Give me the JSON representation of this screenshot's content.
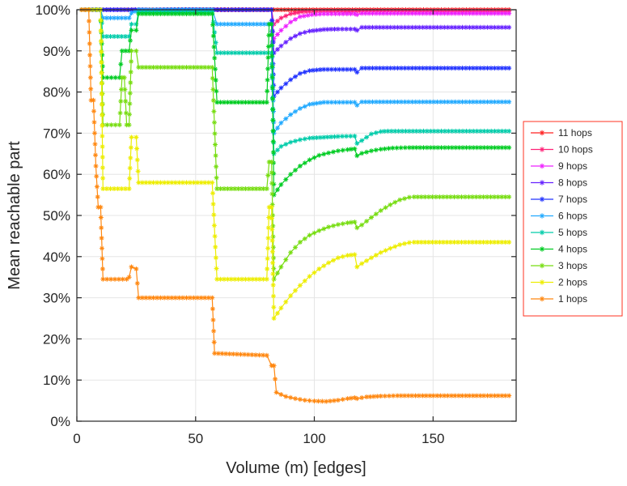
{
  "chart_data": {
    "type": "line",
    "title": "",
    "xlabel": "Volume (m) [edges]",
    "ylabel": "Mean reachable part",
    "xlim": [
      0,
      185
    ],
    "ylim": [
      0,
      100
    ],
    "x_ticks": [
      0,
      50,
      100,
      150
    ],
    "y_ticks": [
      0,
      10,
      20,
      30,
      40,
      50,
      60,
      70,
      80,
      90,
      100
    ],
    "y_tick_suffix": "%",
    "grid": true,
    "marker": "asterisk",
    "legend_position": "right-outside",
    "series": [
      {
        "name": "11 hops",
        "color": "#ff2222",
        "points": [
          [
            2,
            100
          ],
          [
            182,
            100
          ]
        ]
      },
      {
        "name": "10 hops",
        "color": "#ff2277",
        "points": [
          [
            2,
            100
          ],
          [
            82,
            100
          ],
          [
            83,
            96.5
          ],
          [
            86,
            98
          ],
          [
            90,
            99
          ],
          [
            95,
            99.5
          ],
          [
            101,
            99.7
          ],
          [
            182,
            99.7
          ]
        ]
      },
      {
        "name": "9 hops",
        "color": "#ee22ff",
        "points": [
          [
            2,
            100
          ],
          [
            82,
            100
          ],
          [
            83,
            93
          ],
          [
            86,
            95
          ],
          [
            90,
            97
          ],
          [
            94,
            98.3
          ],
          [
            99,
            98.8
          ],
          [
            104,
            99
          ],
          [
            117,
            99
          ],
          [
            118,
            98.8
          ],
          [
            120,
            99.1
          ],
          [
            182,
            99.1
          ]
        ]
      },
      {
        "name": "8 hops",
        "color": "#6622ff",
        "points": [
          [
            2,
            100
          ],
          [
            82,
            100
          ],
          [
            83,
            89.5
          ],
          [
            86,
            91.2
          ],
          [
            90,
            93
          ],
          [
            94,
            94.2
          ],
          [
            98,
            94.8
          ],
          [
            104,
            95.2
          ],
          [
            110,
            95.3
          ],
          [
            117,
            95.3
          ],
          [
            118,
            95
          ],
          [
            120,
            95.7
          ],
          [
            182,
            95.7
          ]
        ]
      },
      {
        "name": "7 hops",
        "color": "#2233ff",
        "points": [
          [
            2,
            100
          ],
          [
            82,
            100
          ],
          [
            83,
            79
          ],
          [
            86,
            81
          ],
          [
            90,
            83
          ],
          [
            94,
            84.5
          ],
          [
            98,
            85.2
          ],
          [
            104,
            85.5
          ],
          [
            117,
            85.5
          ],
          [
            118,
            84.8
          ],
          [
            120,
            85.8
          ],
          [
            182,
            85.8
          ]
        ]
      },
      {
        "name": "6 hops",
        "color": "#22aaff",
        "points": [
          [
            2,
            100
          ],
          [
            10,
            100
          ],
          [
            11,
            98
          ],
          [
            22,
            98
          ],
          [
            23,
            99.2
          ],
          [
            26,
            100
          ],
          [
            57,
            100
          ],
          [
            59,
            96.5
          ],
          [
            82,
            96.5
          ],
          [
            83,
            70
          ],
          [
            86,
            72.5
          ],
          [
            90,
            74.5
          ],
          [
            94,
            76
          ],
          [
            98,
            77
          ],
          [
            104,
            77.5
          ],
          [
            117,
            77.5
          ],
          [
            118,
            76.8
          ],
          [
            120,
            77.6
          ],
          [
            182,
            77.6
          ]
        ]
      },
      {
        "name": "5 hops",
        "color": "#00ccaa",
        "points": [
          [
            2,
            100
          ],
          [
            10,
            100
          ],
          [
            11,
            93.5
          ],
          [
            22,
            93.5
          ],
          [
            23,
            96.5
          ],
          [
            25,
            96.5
          ],
          [
            26,
            99.5
          ],
          [
            57,
            99.5
          ],
          [
            59,
            89.5
          ],
          [
            82,
            89.5
          ],
          [
            83,
            65
          ],
          [
            86,
            66.8
          ],
          [
            90,
            67.8
          ],
          [
            94,
            68.4
          ],
          [
            98,
            68.8
          ],
          [
            104,
            69
          ],
          [
            110,
            69.2
          ],
          [
            117,
            69.3
          ],
          [
            118,
            67.5
          ],
          [
            120,
            68.2
          ],
          [
            124,
            69.8
          ],
          [
            128,
            70.4
          ],
          [
            131,
            70.5
          ],
          [
            182,
            70.5
          ]
        ]
      },
      {
        "name": "4 hops",
        "color": "#00cc22",
        "points": [
          [
            2,
            100
          ],
          [
            10,
            100
          ],
          [
            11,
            83.5
          ],
          [
            18,
            83.5
          ],
          [
            19,
            90
          ],
          [
            22,
            90
          ],
          [
            23,
            95
          ],
          [
            25,
            95
          ],
          [
            26,
            99
          ],
          [
            57,
            99
          ],
          [
            59,
            77.5
          ],
          [
            80,
            77.5
          ],
          [
            81,
            96.5
          ],
          [
            82,
            96.5
          ],
          [
            83,
            55
          ],
          [
            86,
            57.5
          ],
          [
            90,
            60
          ],
          [
            94,
            62
          ],
          [
            98,
            63.5
          ],
          [
            102,
            64.6
          ],
          [
            106,
            65.2
          ],
          [
            110,
            65.7
          ],
          [
            114,
            66
          ],
          [
            117,
            66.2
          ],
          [
            118,
            64.5
          ],
          [
            120,
            65.1
          ],
          [
            124,
            65.7
          ],
          [
            128,
            66.1
          ],
          [
            133,
            66.4
          ],
          [
            140,
            66.5
          ],
          [
            182,
            66.5
          ]
        ]
      },
      {
        "name": "3 hops",
        "color": "#77dd11",
        "points": [
          [
            2,
            100
          ],
          [
            10,
            100
          ],
          [
            11,
            72
          ],
          [
            18,
            72
          ],
          [
            19,
            83.5
          ],
          [
            20,
            83.5
          ],
          [
            21,
            72
          ],
          [
            22,
            72
          ],
          [
            23,
            90
          ],
          [
            25,
            90
          ],
          [
            26,
            86
          ],
          [
            57,
            86
          ],
          [
            59,
            56.5
          ],
          [
            80,
            56.5
          ],
          [
            81,
            63
          ],
          [
            82,
            63
          ],
          [
            83,
            34.5
          ],
          [
            86,
            37.5
          ],
          [
            90,
            41
          ],
          [
            94,
            43.5
          ],
          [
            98,
            45.2
          ],
          [
            102,
            46.3
          ],
          [
            106,
            47.2
          ],
          [
            110,
            47.8
          ],
          [
            114,
            48.2
          ],
          [
            117,
            48.4
          ],
          [
            118,
            47
          ],
          [
            120,
            47.7
          ],
          [
            124,
            49.5
          ],
          [
            128,
            51.2
          ],
          [
            132,
            52.6
          ],
          [
            136,
            53.8
          ],
          [
            140,
            54.4
          ],
          [
            142,
            54.5
          ],
          [
            182,
            54.5
          ]
        ]
      },
      {
        "name": "2 hops",
        "color": "#eded00",
        "points": [
          [
            2,
            100
          ],
          [
            10,
            100
          ],
          [
            11,
            56.5
          ],
          [
            22,
            56.5
          ],
          [
            23,
            69
          ],
          [
            25,
            69
          ],
          [
            26,
            58
          ],
          [
            57,
            58
          ],
          [
            59,
            34.5
          ],
          [
            80,
            34.5
          ],
          [
            81,
            52
          ],
          [
            82,
            52
          ],
          [
            83,
            25
          ],
          [
            86,
            27.5
          ],
          [
            90,
            30.5
          ],
          [
            94,
            33
          ],
          [
            98,
            35.2
          ],
          [
            102,
            37
          ],
          [
            106,
            38.5
          ],
          [
            110,
            39.7
          ],
          [
            114,
            40.3
          ],
          [
            117,
            40.5
          ],
          [
            118,
            37.5
          ],
          [
            120,
            38.3
          ],
          [
            124,
            39.7
          ],
          [
            128,
            41
          ],
          [
            132,
            42
          ],
          [
            136,
            42.9
          ],
          [
            140,
            43.4
          ],
          [
            142,
            43.5
          ],
          [
            182,
            43.5
          ]
        ]
      },
      {
        "name": "1 hops",
        "color": "#ff8811",
        "points": [
          [
            2,
            100
          ],
          [
            5,
            100
          ],
          [
            6,
            78
          ],
          [
            7,
            78
          ],
          [
            8,
            62
          ],
          [
            9,
            52
          ],
          [
            10,
            52
          ],
          [
            11,
            34.5
          ],
          [
            21,
            34.5
          ],
          [
            22,
            35
          ],
          [
            23,
            37.5
          ],
          [
            25,
            37
          ],
          [
            26,
            30
          ],
          [
            57,
            30
          ],
          [
            58,
            16.5
          ],
          [
            80,
            16
          ],
          [
            82,
            13.5
          ],
          [
            83,
            13.5
          ],
          [
            84,
            7
          ],
          [
            88,
            6
          ],
          [
            92,
            5.5
          ],
          [
            96,
            5.1
          ],
          [
            100,
            4.9
          ],
          [
            105,
            4.8
          ],
          [
            110,
            5.1
          ],
          [
            114,
            5.5
          ],
          [
            117,
            5.7
          ],
          [
            118,
            5.5
          ],
          [
            122,
            5.9
          ],
          [
            128,
            6.1
          ],
          [
            135,
            6.2
          ],
          [
            182,
            6.2
          ]
        ]
      }
    ]
  },
  "legend": {
    "border_color": "#ff3322",
    "background": "#ffffff"
  },
  "colors": {
    "grid": "#e5e5e5",
    "frame": "#262626",
    "background": "#ffffff"
  }
}
